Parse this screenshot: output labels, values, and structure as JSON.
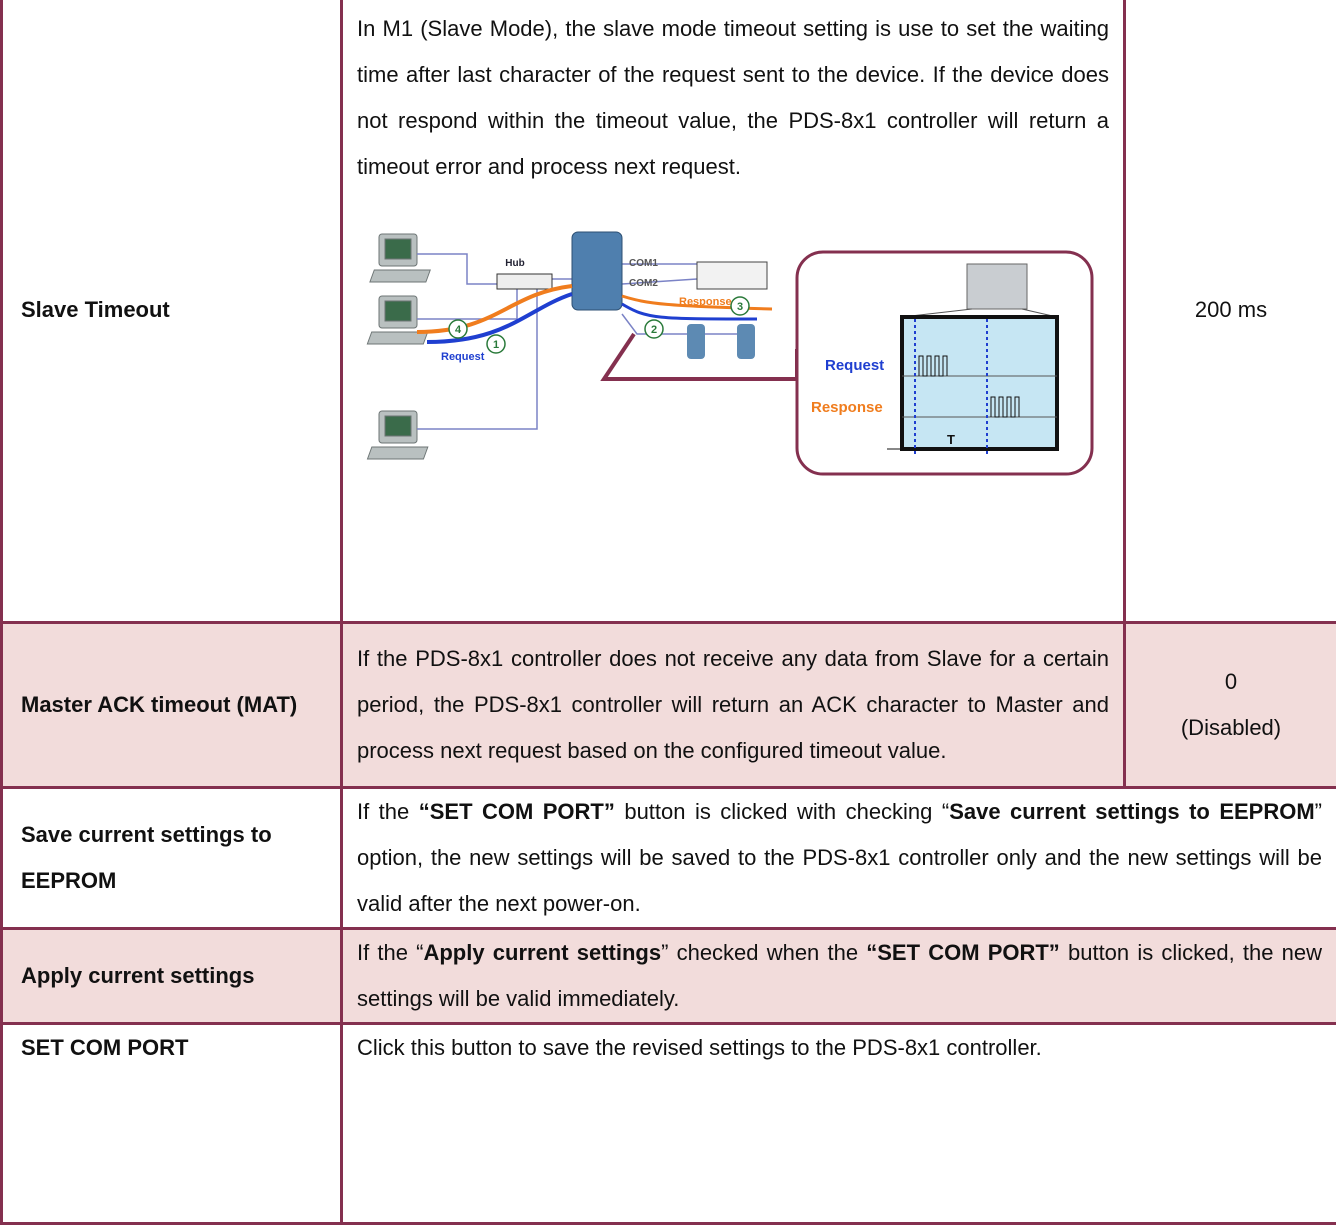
{
  "rows": [
    {
      "name": "Slave Timeout",
      "description": [
        {
          "text": "In M1 (Slave Mode), the slave mode timeout setting is use to set the waiting time after last character of the request sent to the device. If the device does not respond within the timeout value, the PDS-8x1 controller will return a timeout error and process next request."
        }
      ],
      "default": [
        "200 ms"
      ]
    },
    {
      "name": "Master ACK timeout (MAT)",
      "description": [
        {
          "text": "If the PDS-8x1 controller does not receive any data from Slave for a certain period, the PDS-8x1 controller will return an ACK character to Master and process next request based on the configured timeout value."
        }
      ],
      "default": [
        "0",
        "(Disabled)"
      ]
    },
    {
      "name": "Save current settings to EEPROM",
      "description": [
        {
          "text": "If the "
        },
        {
          "text": "“SET COM PORT”",
          "bold": true
        },
        {
          "text": " button is clicked with checking “"
        },
        {
          "text": "Save current settings to EEPROM",
          "bold": true
        },
        {
          "text": "” option, the new settings will be saved to the PDS-8x1 controller only and the new settings will be valid after the next power-on."
        }
      ]
    },
    {
      "name": "Apply current settings",
      "description": [
        {
          "text": "If the “"
        },
        {
          "text": "Apply current settings",
          "bold": true
        },
        {
          "text": "” checked when the "
        },
        {
          "text": "“SET COM PORT”",
          "bold": true
        },
        {
          "text": " button is clicked, the new settings will be valid immediately."
        }
      ]
    },
    {
      "name": "SET COM PORT",
      "description": [
        {
          "text": "Click this button to save the revised settings to the PDS-8x1 controller."
        }
      ]
    }
  ],
  "diagram": {
    "labels": [
      "Hub",
      "COM1",
      "COM2",
      "Response",
      "Request",
      "1",
      "2",
      "3",
      "4",
      "Request",
      "Response",
      "T"
    ]
  }
}
